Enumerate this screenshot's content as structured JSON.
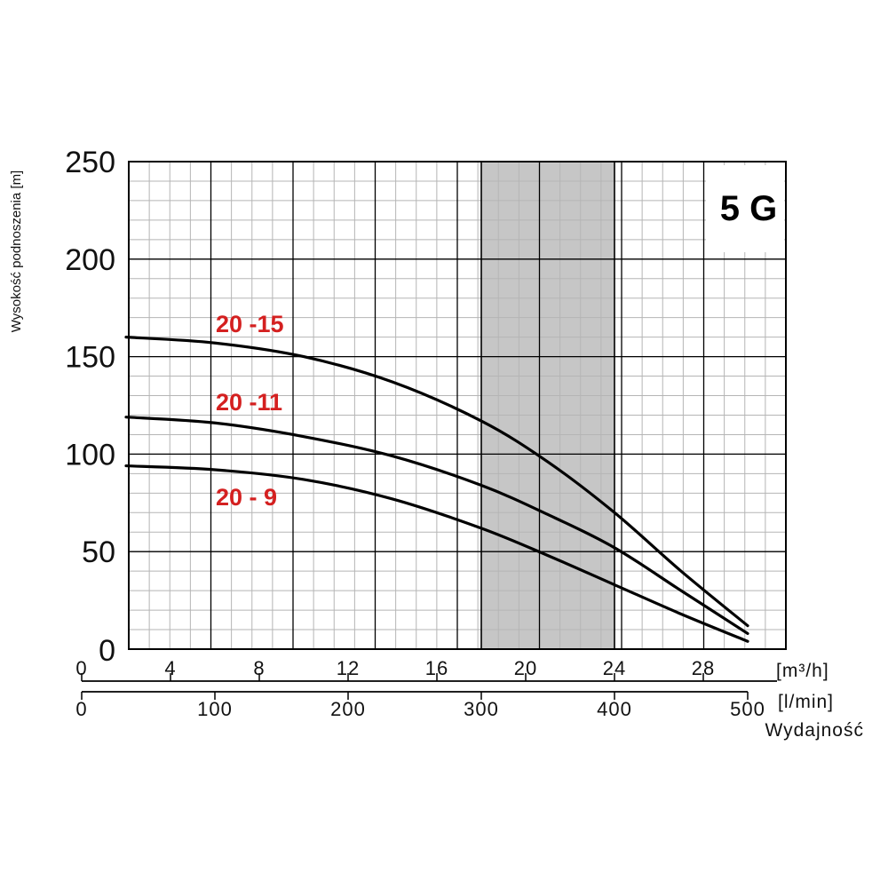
{
  "chart_data": {
    "type": "line",
    "badge": "5 G",
    "ylabel": "Wysokość podnoszenia [m]",
    "ylim": [
      0,
      250
    ],
    "y_ticks": [
      "0",
      "50",
      "100",
      "150",
      "200",
      "250"
    ],
    "xlim": [
      0,
      30
    ],
    "x_ticks": [
      "0",
      "4",
      "8",
      "12",
      "16",
      "20",
      "24",
      "28"
    ],
    "x_unit_label": "[m³/h]",
    "x2_ticks": [
      "0",
      "100",
      "200",
      "300",
      "400",
      "500"
    ],
    "x2_unit_label": "[l/min]",
    "xlabel": "Wydajność",
    "shaded_range": [
      18,
      24
    ],
    "grid": true,
    "series": [
      {
        "name": "20 -15",
        "x": [
          2,
          6,
          10,
          14,
          18,
          21,
          24,
          27,
          30
        ],
        "y": [
          160,
          157,
          150,
          137,
          117,
          96,
          70,
          40,
          12
        ]
      },
      {
        "name": "20 -11",
        "x": [
          2,
          6,
          10,
          14,
          18,
          21,
          24,
          27,
          30
        ],
        "y": [
          119,
          116,
          109,
          99,
          84,
          69,
          52,
          30,
          8
        ]
      },
      {
        "name": "20 - 9",
        "x": [
          2,
          6,
          10,
          14,
          18,
          21,
          24,
          27,
          30
        ],
        "y": [
          94,
          92,
          87,
          77,
          62,
          48,
          33,
          18,
          4
        ]
      }
    ]
  }
}
